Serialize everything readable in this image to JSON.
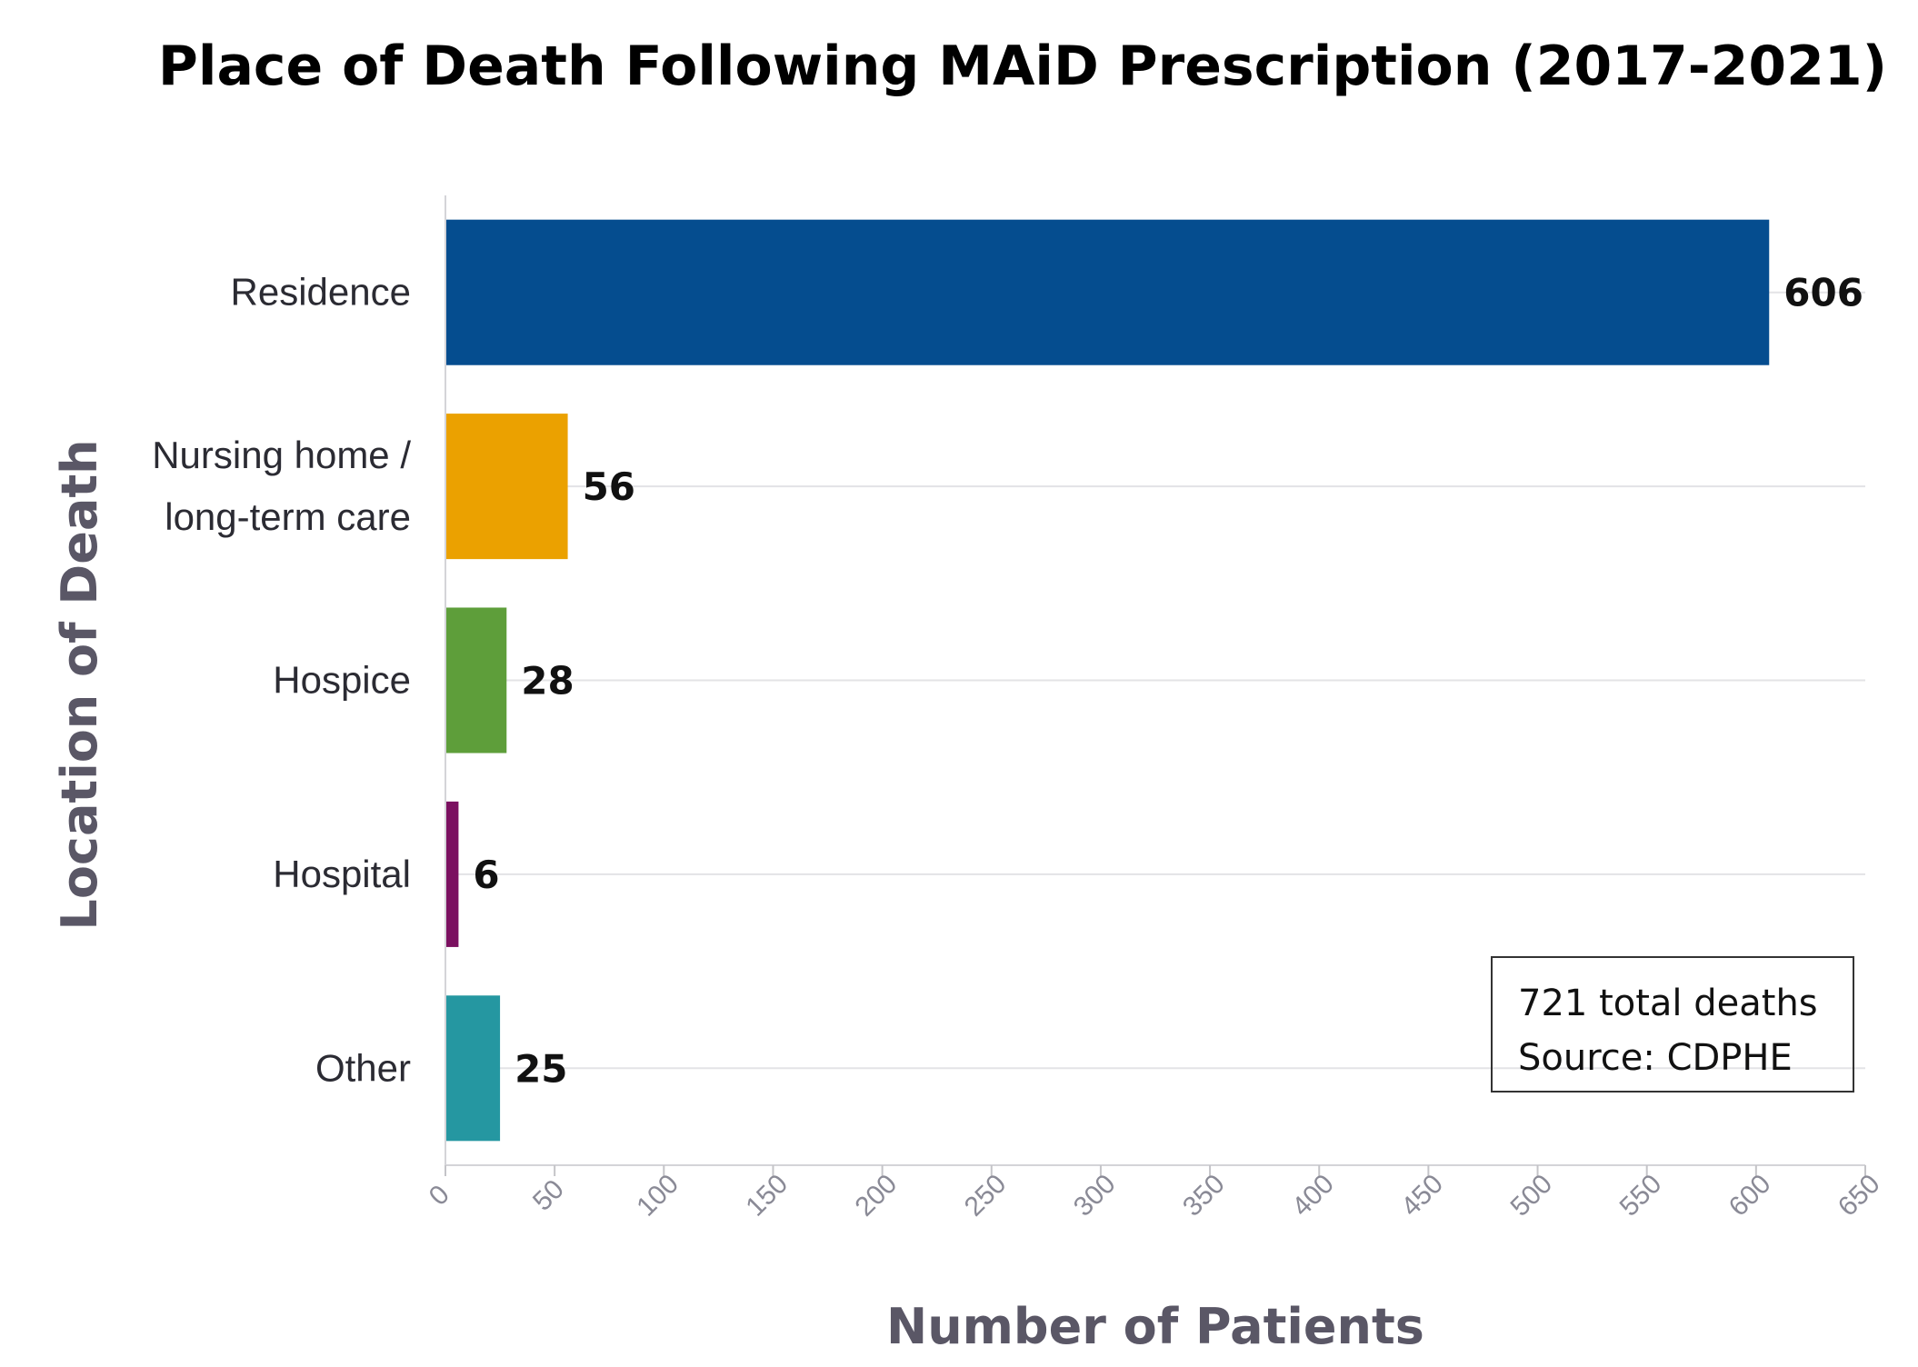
{
  "chart_data": {
    "type": "bar",
    "orientation": "horizontal",
    "title": "Place of Death Following MAiD Prescription (2017-2021)",
    "xlabel": "Number of Patients",
    "ylabel": "Location of Death",
    "xlim": [
      0,
      650
    ],
    "xticks": [
      "0",
      "50",
      "100",
      "150",
      "200",
      "250",
      "300",
      "350",
      "400",
      "450",
      "500",
      "550",
      "600",
      "650"
    ],
    "grid": true,
    "categories": [
      {
        "lines": [
          "Residence"
        ],
        "value": 606,
        "color": "#054d8f"
      },
      {
        "lines": [
          "Nursing home /",
          "long-term care"
        ],
        "value": 56,
        "color": "#eba100"
      },
      {
        "lines": [
          "Hospice"
        ],
        "value": 28,
        "color": "#5e9e3a"
      },
      {
        "lines": [
          "Hospital"
        ],
        "value": 6,
        "color": "#7b1060"
      },
      {
        "lines": [
          "Other"
        ],
        "value": 25,
        "color": "#2597a1"
      }
    ]
  },
  "annotation": {
    "line1": "721 total deaths",
    "line2": "Source: CDPHE"
  }
}
